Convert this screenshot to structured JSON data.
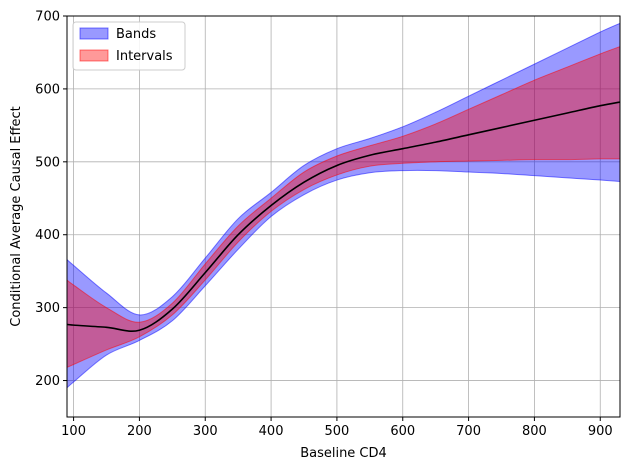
{
  "chart_data": {
    "type": "area",
    "xlabel": "Baseline CD4",
    "ylabel": "Conditional Average Causal Effect",
    "xlim": [
      90,
      930
    ],
    "ylim": [
      150,
      700
    ],
    "xticks": [
      100,
      200,
      300,
      400,
      500,
      600,
      700,
      800,
      900
    ],
    "yticks": [
      200,
      300,
      400,
      500,
      600,
      700
    ],
    "grid": true,
    "legend_position": "top-left",
    "colors": {
      "bands_fill": "#0000ff",
      "bands_edge": "#0000ff",
      "intervals_fill": "#ff0000",
      "intervals_edge": "#ff0000",
      "line": "#000000"
    },
    "series": [
      {
        "name": "Bands",
        "kind": "band",
        "x": [
          90,
          100,
          150,
          200,
          250,
          300,
          350,
          400,
          450,
          500,
          550,
          600,
          650,
          700,
          750,
          800,
          850,
          900,
          930
        ],
        "lower": [
          190,
          198,
          235,
          255,
          282,
          330,
          380,
          425,
          455,
          475,
          485,
          488,
          488,
          486,
          484,
          481,
          478,
          475,
          473
        ],
        "upper": [
          366,
          358,
          320,
          290,
          315,
          368,
          422,
          458,
          495,
          518,
          532,
          548,
          568,
          590,
          612,
          634,
          656,
          678,
          690
        ]
      },
      {
        "name": "Intervals",
        "kind": "interval",
        "x": [
          90,
          100,
          150,
          200,
          250,
          300,
          350,
          400,
          450,
          500,
          550,
          600,
          650,
          700,
          750,
          800,
          850,
          900,
          930
        ],
        "lower": [
          218,
          222,
          242,
          260,
          290,
          338,
          390,
          432,
          462,
          482,
          494,
          498,
          500,
          501,
          502,
          503,
          503,
          504,
          504
        ],
        "upper": [
          338,
          331,
          300,
          280,
          306,
          360,
          412,
          450,
          486,
          508,
          522,
          535,
          552,
          572,
          592,
          612,
          630,
          648,
          658
        ]
      },
      {
        "kind": "line",
        "x": [
          90,
          100,
          150,
          200,
          250,
          300,
          350,
          400,
          450,
          500,
          550,
          600,
          650,
          700,
          750,
          800,
          850,
          900,
          930
        ],
        "y": [
          277,
          276,
          273,
          269,
          298,
          348,
          400,
          440,
          472,
          495,
          509,
          518,
          527,
          537,
          547,
          557,
          567,
          577,
          582
        ]
      }
    ]
  }
}
